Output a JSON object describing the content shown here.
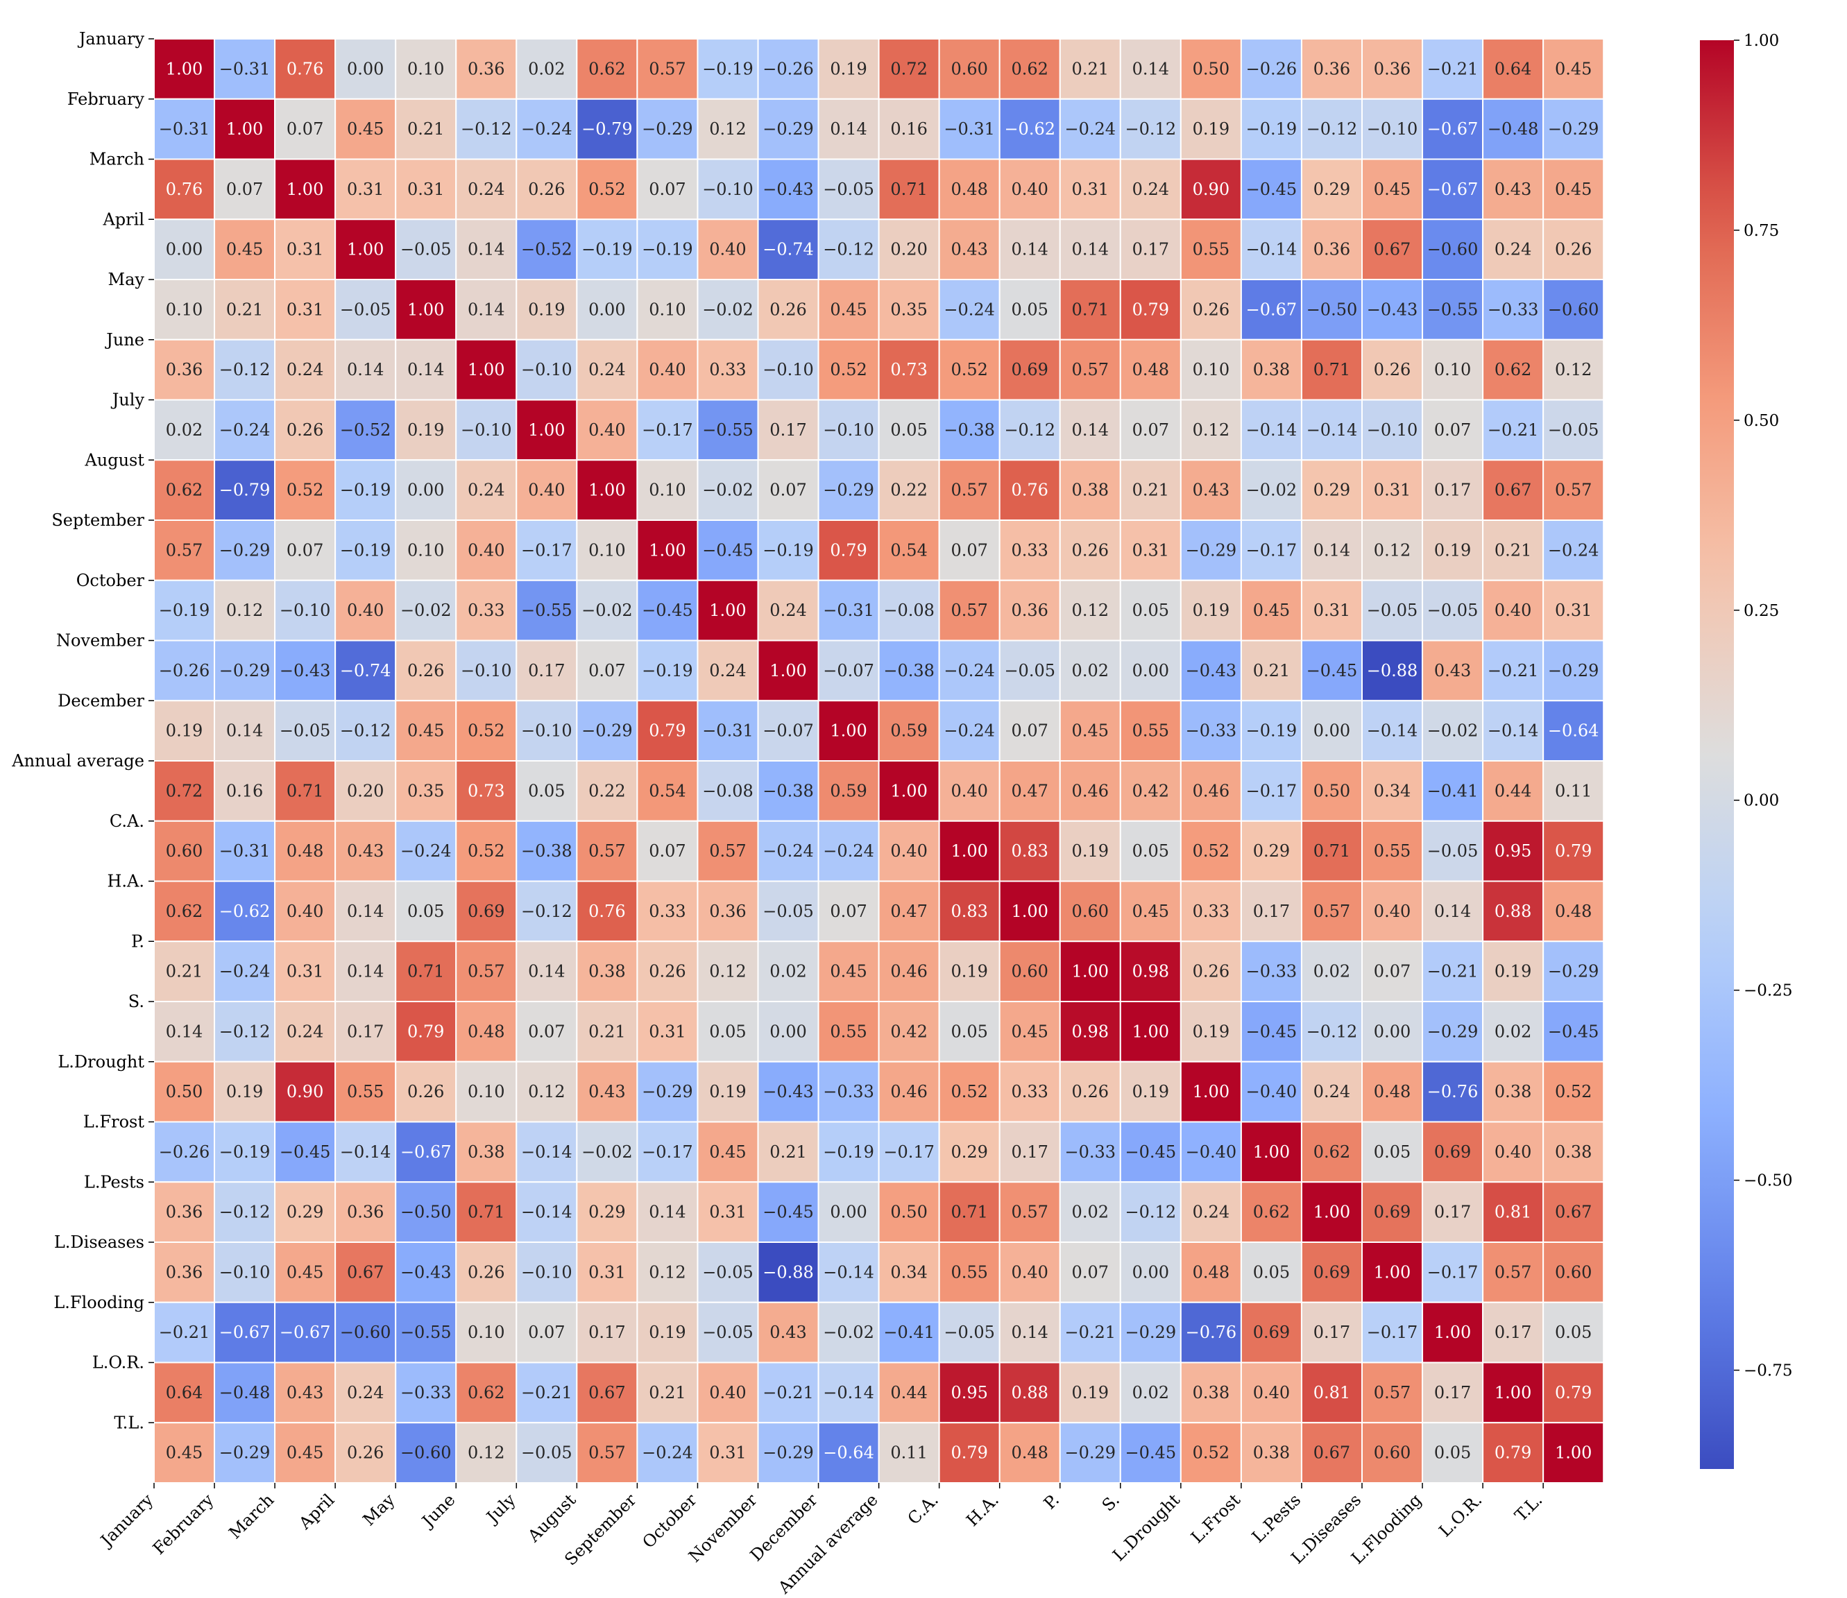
{
  "chart_data": {
    "type": "heatmap",
    "title": "",
    "xlabel": "",
    "ylabel": "",
    "colormap": "coolwarm",
    "value_format": "2 decimals, unicode minus",
    "vmin": -0.88,
    "vmax": 1.0,
    "labels": [
      "January",
      "February",
      "March",
      "April",
      "May",
      "June",
      "July",
      "August",
      "September",
      "October",
      "November",
      "December",
      "Annual average",
      "C.A.",
      "H.A.",
      "P.",
      "S.",
      "L.Drought",
      "L.Frost",
      "L.Pests",
      "L.Diseases",
      "L.Flooding",
      "L.O.R.",
      "T.L."
    ],
    "matrix": [
      [
        1.0,
        -0.31,
        0.76,
        0.0,
        0.1,
        0.36,
        0.02,
        0.62,
        0.57,
        -0.19,
        -0.26,
        0.19,
        0.72,
        0.6,
        0.62,
        0.21,
        0.14,
        0.5,
        -0.26,
        0.36,
        0.36,
        -0.21,
        0.64,
        0.45
      ],
      [
        -0.31,
        1.0,
        0.07,
        0.45,
        0.21,
        -0.12,
        -0.24,
        -0.79,
        -0.29,
        0.12,
        -0.29,
        0.14,
        0.16,
        -0.31,
        -0.62,
        -0.24,
        -0.12,
        0.19,
        -0.19,
        -0.12,
        -0.1,
        -0.67,
        -0.48,
        -0.29
      ],
      [
        0.76,
        0.07,
        1.0,
        0.31,
        0.31,
        0.24,
        0.26,
        0.52,
        0.07,
        -0.1,
        -0.43,
        -0.05,
        0.71,
        0.48,
        0.4,
        0.31,
        0.24,
        0.9,
        -0.45,
        0.29,
        0.45,
        -0.67,
        0.43,
        0.45
      ],
      [
        0.0,
        0.45,
        0.31,
        1.0,
        -0.05,
        0.14,
        -0.52,
        -0.19,
        -0.19,
        0.4,
        -0.74,
        -0.12,
        0.2,
        0.43,
        0.14,
        0.14,
        0.17,
        0.55,
        -0.14,
        0.36,
        0.67,
        -0.6,
        0.24,
        0.26
      ],
      [
        0.1,
        0.21,
        0.31,
        -0.05,
        1.0,
        0.14,
        0.19,
        0.0,
        0.1,
        -0.02,
        0.26,
        0.45,
        0.35,
        -0.24,
        0.05,
        0.71,
        0.79,
        0.26,
        -0.67,
        -0.5,
        -0.43,
        -0.55,
        -0.33,
        -0.6
      ],
      [
        0.36,
        -0.12,
        0.24,
        0.14,
        0.14,
        1.0,
        -0.1,
        0.24,
        0.4,
        0.33,
        -0.1,
        0.52,
        0.73,
        0.52,
        0.69,
        0.57,
        0.48,
        0.1,
        0.38,
        0.71,
        0.26,
        0.1,
        0.62,
        0.12
      ],
      [
        0.02,
        -0.24,
        0.26,
        -0.52,
        0.19,
        -0.1,
        1.0,
        0.4,
        -0.17,
        -0.55,
        0.17,
        -0.1,
        0.05,
        -0.38,
        -0.12,
        0.14,
        0.07,
        0.12,
        -0.14,
        -0.14,
        -0.1,
        0.07,
        -0.21,
        -0.05
      ],
      [
        0.62,
        -0.79,
        0.52,
        -0.19,
        0.0,
        0.24,
        0.4,
        1.0,
        0.1,
        -0.02,
        0.07,
        -0.29,
        0.22,
        0.57,
        0.76,
        0.38,
        0.21,
        0.43,
        -0.02,
        0.29,
        0.31,
        0.17,
        0.67,
        0.57
      ],
      [
        0.57,
        -0.29,
        0.07,
        -0.19,
        0.1,
        0.4,
        -0.17,
        0.1,
        1.0,
        -0.45,
        -0.19,
        0.79,
        0.54,
        0.07,
        0.33,
        0.26,
        0.31,
        -0.29,
        -0.17,
        0.14,
        0.12,
        0.19,
        0.21,
        -0.24
      ],
      [
        -0.19,
        0.12,
        -0.1,
        0.4,
        -0.02,
        0.33,
        -0.55,
        -0.02,
        -0.45,
        1.0,
        0.24,
        -0.31,
        -0.08,
        0.57,
        0.36,
        0.12,
        0.05,
        0.19,
        0.45,
        0.31,
        -0.05,
        -0.05,
        0.4,
        0.31
      ],
      [
        -0.26,
        -0.29,
        -0.43,
        -0.74,
        0.26,
        -0.1,
        0.17,
        0.07,
        -0.19,
        0.24,
        1.0,
        -0.07,
        -0.38,
        -0.24,
        -0.05,
        0.02,
        0.0,
        -0.43,
        0.21,
        -0.45,
        -0.88,
        0.43,
        -0.21,
        -0.29
      ],
      [
        0.19,
        0.14,
        -0.05,
        -0.12,
        0.45,
        0.52,
        -0.1,
        -0.29,
        0.79,
        -0.31,
        -0.07,
        1.0,
        0.59,
        -0.24,
        0.07,
        0.45,
        0.55,
        -0.33,
        -0.19,
        0.0,
        -0.14,
        -0.02,
        -0.14,
        -0.64
      ],
      [
        0.72,
        0.16,
        0.71,
        0.2,
        0.35,
        0.73,
        0.05,
        0.22,
        0.54,
        -0.08,
        -0.38,
        0.59,
        1.0,
        0.4,
        0.47,
        0.46,
        0.42,
        0.46,
        -0.17,
        0.5,
        0.34,
        -0.41,
        0.44,
        0.11
      ],
      [
        0.6,
        -0.31,
        0.48,
        0.43,
        -0.24,
        0.52,
        -0.38,
        0.57,
        0.07,
        0.57,
        -0.24,
        -0.24,
        0.4,
        1.0,
        0.83,
        0.19,
        0.05,
        0.52,
        0.29,
        0.71,
        0.55,
        -0.05,
        0.95,
        0.79
      ],
      [
        0.62,
        -0.62,
        0.4,
        0.14,
        0.05,
        0.69,
        -0.12,
        0.76,
        0.33,
        0.36,
        -0.05,
        0.07,
        0.47,
        0.83,
        1.0,
        0.6,
        0.45,
        0.33,
        0.17,
        0.57,
        0.4,
        0.14,
        0.88,
        0.48
      ],
      [
        0.21,
        -0.24,
        0.31,
        0.14,
        0.71,
        0.57,
        0.14,
        0.38,
        0.26,
        0.12,
        0.02,
        0.45,
        0.46,
        0.19,
        0.6,
        1.0,
        0.98,
        0.26,
        -0.33,
        0.02,
        0.07,
        -0.21,
        0.19,
        -0.29
      ],
      [
        0.14,
        -0.12,
        0.24,
        0.17,
        0.79,
        0.48,
        0.07,
        0.21,
        0.31,
        0.05,
        0.0,
        0.55,
        0.42,
        0.05,
        0.45,
        0.98,
        1.0,
        0.19,
        -0.45,
        -0.12,
        0.0,
        -0.29,
        0.02,
        -0.45
      ],
      [
        0.5,
        0.19,
        0.9,
        0.55,
        0.26,
        0.1,
        0.12,
        0.43,
        -0.29,
        0.19,
        -0.43,
        -0.33,
        0.46,
        0.52,
        0.33,
        0.26,
        0.19,
        1.0,
        -0.4,
        0.24,
        0.48,
        -0.76,
        0.38,
        0.52
      ],
      [
        -0.26,
        -0.19,
        -0.45,
        -0.14,
        -0.67,
        0.38,
        -0.14,
        -0.02,
        -0.17,
        0.45,
        0.21,
        -0.19,
        -0.17,
        0.29,
        0.17,
        -0.33,
        -0.45,
        -0.4,
        1.0,
        0.62,
        0.05,
        0.69,
        0.4,
        0.38
      ],
      [
        0.36,
        -0.12,
        0.29,
        0.36,
        -0.5,
        0.71,
        -0.14,
        0.29,
        0.14,
        0.31,
        -0.45,
        0.0,
        0.5,
        0.71,
        0.57,
        0.02,
        -0.12,
        0.24,
        0.62,
        1.0,
        0.69,
        0.17,
        0.81,
        0.67
      ],
      [
        0.36,
        -0.1,
        0.45,
        0.67,
        -0.43,
        0.26,
        -0.1,
        0.31,
        0.12,
        -0.05,
        -0.88,
        -0.14,
        0.34,
        0.55,
        0.4,
        0.07,
        0.0,
        0.48,
        0.05,
        0.69,
        1.0,
        -0.17,
        0.57,
        0.6
      ],
      [
        -0.21,
        -0.67,
        -0.67,
        -0.6,
        -0.55,
        0.1,
        0.07,
        0.17,
        0.19,
        -0.05,
        0.43,
        -0.02,
        -0.41,
        -0.05,
        0.14,
        -0.21,
        -0.29,
        -0.76,
        0.69,
        0.17,
        -0.17,
        1.0,
        0.17,
        0.05
      ],
      [
        0.64,
        -0.48,
        0.43,
        0.24,
        -0.33,
        0.62,
        -0.21,
        0.67,
        0.21,
        0.4,
        -0.21,
        -0.14,
        0.44,
        0.95,
        0.88,
        0.19,
        0.02,
        0.38,
        0.4,
        0.81,
        0.57,
        0.17,
        1.0,
        0.79
      ],
      [
        0.45,
        -0.29,
        0.45,
        0.26,
        -0.6,
        0.12,
        -0.05,
        0.57,
        -0.24,
        0.31,
        -0.29,
        -0.64,
        0.11,
        0.79,
        0.48,
        -0.29,
        -0.45,
        0.52,
        0.38,
        0.67,
        0.6,
        0.05,
        0.79,
        1.0
      ]
    ],
    "colorbar": {
      "ticks": [
        1.0,
        0.75,
        0.5,
        0.25,
        0.0,
        -0.25,
        -0.5,
        -0.75
      ],
      "tick_labels": [
        "1.00",
        "0.75",
        "0.50",
        "0.25",
        "0.00",
        "−0.25",
        "−0.50",
        "−0.75"
      ]
    }
  }
}
